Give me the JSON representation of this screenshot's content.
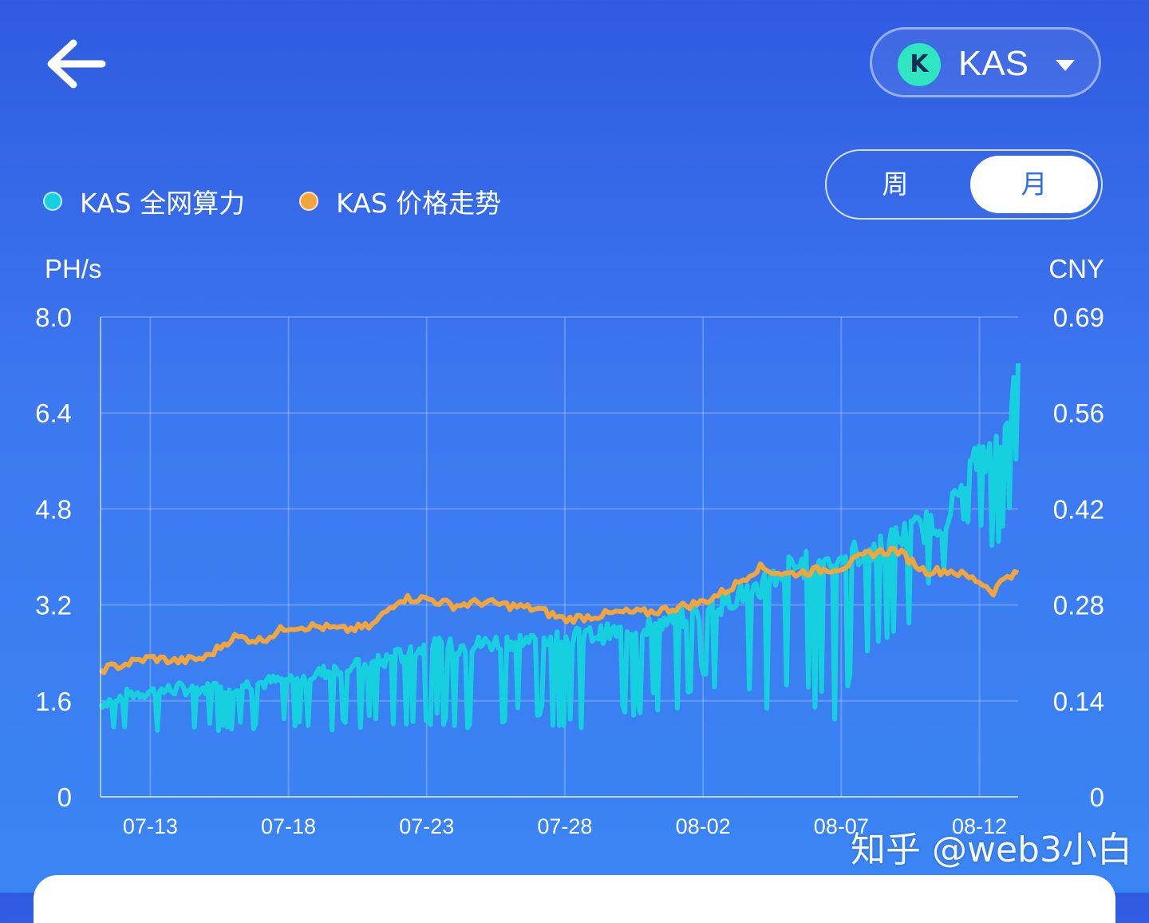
{
  "header": {
    "back_icon": "arrow-left-icon",
    "coin": {
      "label": "KAS",
      "logo_glyph": "K",
      "logo_color": "#2ee6c0"
    }
  },
  "legend": [
    {
      "label": "KAS 全网算力",
      "color": "#16d0e0"
    },
    {
      "label": "KAS 价格走势",
      "color": "#f2a53a"
    }
  ],
  "period": {
    "options": [
      "周",
      "月"
    ],
    "selected": "月"
  },
  "watermark": "知乎 @web3小白",
  "chart_data": {
    "type": "line",
    "x_labels": [
      "07-13",
      "07-18",
      "07-23",
      "07-28",
      "08-02",
      "08-07",
      "08-12"
    ],
    "x_label_dates": [
      13,
      18,
      23,
      28,
      33,
      38,
      43
    ],
    "x_domain": [
      11.2,
      44.4
    ],
    "y_left": {
      "unit": "PH/s",
      "ticks": [
        "8.0",
        "6.4",
        "4.8",
        "3.2",
        "1.6",
        "0"
      ],
      "range": [
        0,
        8
      ]
    },
    "y_right": {
      "unit": "CNY",
      "ticks": [
        "0.69",
        "0.56",
        "0.42",
        "0.28",
        "0.14",
        "0"
      ],
      "range": [
        0,
        0.69
      ]
    },
    "grid": true,
    "series": [
      {
        "name": "KAS 全网算力",
        "axis": "left",
        "color": "#16d0e0",
        "x": [
          11.2,
          12,
          13,
          14,
          15,
          16,
          17,
          18,
          19,
          20,
          21,
          22,
          23,
          24,
          25,
          26,
          27,
          28,
          29,
          30,
          31,
          32,
          33,
          34,
          35,
          36,
          37,
          38,
          39,
          40,
          41,
          41.5,
          42,
          42.5,
          43,
          43.5,
          44,
          44.4
        ],
        "values": [
          1.55,
          1.7,
          1.75,
          1.8,
          1.8,
          1.85,
          1.9,
          1.95,
          2.05,
          2.15,
          2.2,
          2.35,
          2.5,
          2.5,
          2.55,
          2.6,
          2.6,
          2.65,
          2.7,
          2.75,
          2.85,
          2.95,
          3.1,
          3.3,
          3.5,
          3.8,
          3.9,
          4.0,
          4.1,
          4.3,
          4.5,
          4.6,
          4.8,
          5.3,
          5.7,
          5.6,
          6.5,
          6.9
        ],
        "min_values": [
          1.1,
          1.1,
          1.1,
          1.1,
          1.1,
          1.1,
          1.1,
          1.1,
          1.1,
          1.1,
          1.1,
          1.1,
          1.1,
          1.1,
          1.1,
          1.1,
          1.2,
          1.1,
          1.1,
          1.2,
          1.4,
          1.4,
          2.0,
          1.5,
          1.4,
          1.4,
          1.3,
          1.1,
          2.3,
          2.3,
          3.4,
          3.4,
          3.6,
          4.6,
          4.3,
          4.0,
          4.1,
          5.8
        ]
      },
      {
        "name": "KAS 价格走势",
        "axis": "right",
        "color": "#f2a53a",
        "x": [
          11.2,
          12,
          13,
          14,
          15,
          16,
          17,
          18,
          19,
          20,
          21,
          22,
          23,
          24,
          25,
          26,
          27,
          28,
          29,
          30,
          31,
          32,
          33,
          34,
          35,
          36,
          37,
          38,
          39,
          40,
          41,
          42,
          43,
          43.5,
          44,
          44.4
        ],
        "values": [
          0.183,
          0.19,
          0.2,
          0.195,
          0.2,
          0.23,
          0.225,
          0.245,
          0.245,
          0.24,
          0.245,
          0.285,
          0.285,
          0.275,
          0.28,
          0.275,
          0.27,
          0.255,
          0.26,
          0.265,
          0.265,
          0.272,
          0.28,
          0.3,
          0.33,
          0.32,
          0.325,
          0.33,
          0.35,
          0.355,
          0.325,
          0.325,
          0.31,
          0.295,
          0.32,
          0.32
        ]
      }
    ]
  }
}
